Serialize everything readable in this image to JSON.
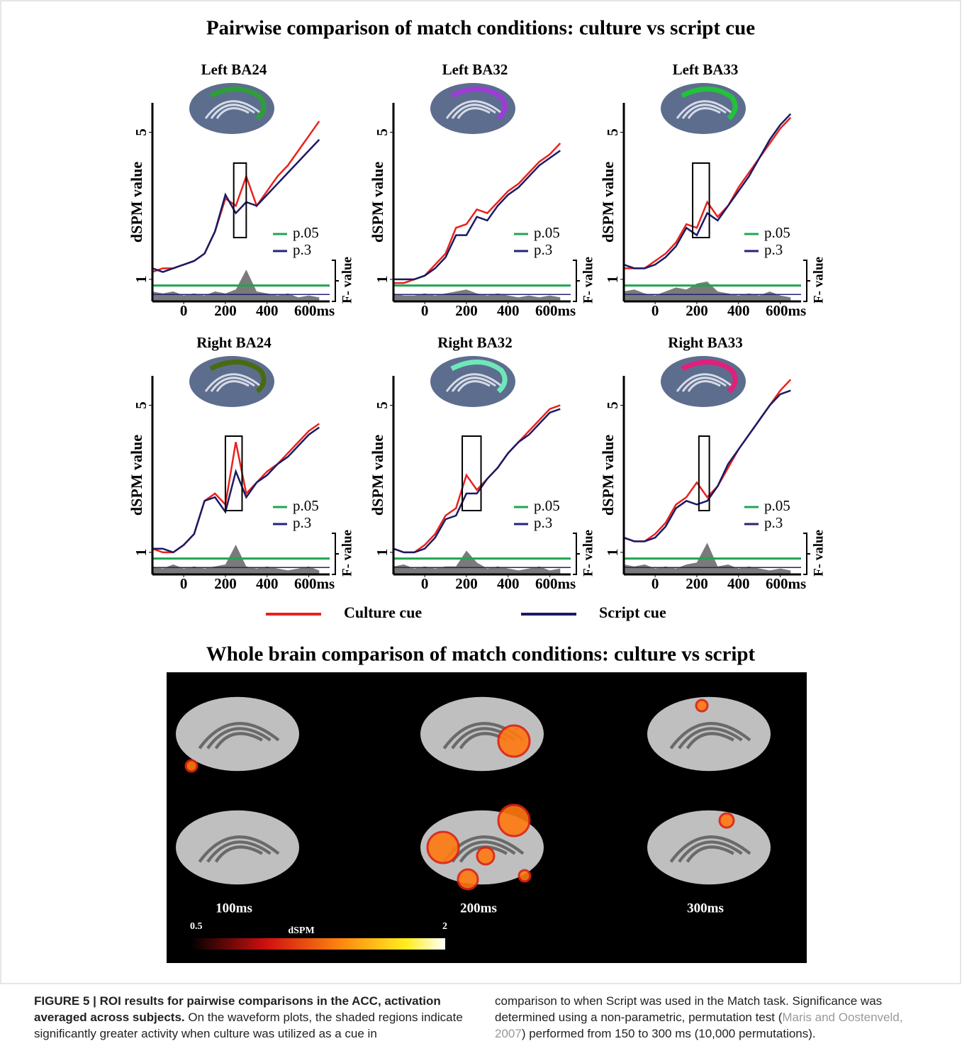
{
  "figure_title": "Pairwise comparison of match conditions:  culture vs script cue",
  "chart_data": [
    {
      "type": "line",
      "title": "Left BA24",
      "y_label": "dSPM value",
      "y2_label": "F- value",
      "roi_color": "#2e9e3a",
      "xlim": [
        -150,
        700
      ],
      "ylim": [
        0.4,
        5.8
      ],
      "y2lim": [
        0,
        10
      ],
      "xticks": [
        0,
        200,
        400,
        {
          "value": 600,
          "label": "600ms"
        }
      ],
      "yticks": [
        1,
        5
      ],
      "x": [
        -150,
        -100,
        -50,
        0,
        50,
        100,
        150,
        200,
        250,
        300,
        350,
        400,
        450,
        500,
        550,
        600,
        650
      ],
      "series": [
        {
          "color": "#e8221e",
          "values": [
            1.2,
            1.3,
            1.3,
            1.4,
            1.5,
            1.7,
            2.3,
            3.2,
            3.0,
            3.8,
            3.0,
            3.4,
            3.8,
            4.1,
            4.5,
            4.9,
            5.3
          ]
        },
        {
          "color": "#1a1a66",
          "values": [
            1.3,
            1.2,
            1.3,
            1.4,
            1.5,
            1.7,
            2.3,
            3.3,
            2.8,
            3.1,
            3.0,
            3.3,
            3.6,
            3.9,
            4.2,
            4.5,
            4.8
          ]
        },
        {
          "color": "#7a7a7a",
          "axis": "y2",
          "values": [
            0.5,
            0.4,
            0.5,
            0.3,
            0.4,
            0.3,
            0.5,
            0.4,
            0.6,
            1.6,
            0.5,
            0.4,
            0.3,
            0.4,
            0.2,
            0.3,
            0.2
          ]
        }
      ],
      "thresholds": [
        {
          "label": "p.05",
          "value": 0.8,
          "color": "#1fa552"
        },
        {
          "label": "p.3",
          "value": 0.35,
          "color": "#23237a"
        }
      ],
      "highlight_x": [
        240,
        300
      ]
    },
    {
      "type": "line",
      "title": "Left BA32",
      "y_label": "dSPM value",
      "y2_label": "F- value",
      "roi_color": "#9b3dd6",
      "xlim": [
        -150,
        700
      ],
      "ylim": [
        0.4,
        5.8
      ],
      "y2lim": [
        0,
        10
      ],
      "xticks": [
        0,
        200,
        400,
        {
          "value": 600,
          "label": "600ms"
        }
      ],
      "yticks": [
        1,
        5
      ],
      "x": [
        -150,
        -100,
        -50,
        0,
        50,
        100,
        150,
        200,
        250,
        300,
        350,
        400,
        450,
        500,
        550,
        600,
        650
      ],
      "series": [
        {
          "color": "#e8221e",
          "values": [
            0.9,
            0.9,
            1.0,
            1.1,
            1.4,
            1.7,
            2.4,
            2.5,
            2.9,
            2.8,
            3.1,
            3.4,
            3.6,
            3.9,
            4.2,
            4.4,
            4.7
          ]
        },
        {
          "color": "#1a1a66",
          "values": [
            1.0,
            1.0,
            1.0,
            1.1,
            1.3,
            1.6,
            2.2,
            2.2,
            2.7,
            2.6,
            3.0,
            3.3,
            3.5,
            3.8,
            4.1,
            4.3,
            4.5
          ]
        },
        {
          "color": "#7a7a7a",
          "axis": "y2",
          "values": [
            0.4,
            0.3,
            0.3,
            0.4,
            0.3,
            0.4,
            0.5,
            0.6,
            0.4,
            0.3,
            0.4,
            0.3,
            0.2,
            0.3,
            0.2,
            0.3,
            0.2
          ]
        }
      ],
      "thresholds": [
        {
          "label": "p.05",
          "value": 0.8,
          "color": "#1fa552"
        },
        {
          "label": "p.3",
          "value": 0.35,
          "color": "#23237a"
        }
      ]
    },
    {
      "type": "line",
      "title": "Left BA33",
      "y_label": "dSPM value",
      "y2_label": "F- value",
      "roi_color": "#22c23a",
      "xlim": [
        -150,
        700
      ],
      "ylim": [
        0.4,
        5.8
      ],
      "y2lim": [
        0,
        10
      ],
      "xticks": [
        0,
        200,
        400,
        {
          "value": 600,
          "label": "600ms"
        }
      ],
      "yticks": [
        1,
        5
      ],
      "x": [
        -150,
        -100,
        -50,
        0,
        50,
        100,
        150,
        200,
        250,
        300,
        350,
        400,
        450,
        500,
        550,
        600,
        650
      ],
      "series": [
        {
          "color": "#e8221e",
          "values": [
            1.3,
            1.3,
            1.3,
            1.5,
            1.7,
            2.0,
            2.5,
            2.4,
            3.1,
            2.7,
            3.0,
            3.5,
            3.9,
            4.3,
            4.7,
            5.1,
            5.4
          ]
        },
        {
          "color": "#1a1a66",
          "values": [
            1.4,
            1.3,
            1.3,
            1.4,
            1.6,
            1.9,
            2.4,
            2.2,
            2.8,
            2.6,
            3.0,
            3.4,
            3.8,
            4.3,
            4.8,
            5.2,
            5.5
          ]
        },
        {
          "color": "#7a7a7a",
          "axis": "y2",
          "values": [
            0.5,
            0.6,
            0.4,
            0.3,
            0.5,
            0.7,
            0.6,
            0.9,
            1.0,
            0.5,
            0.4,
            0.3,
            0.4,
            0.3,
            0.5,
            0.3,
            0.2
          ]
        }
      ],
      "thresholds": [
        {
          "label": "p.05",
          "value": 0.8,
          "color": "#1fa552"
        },
        {
          "label": "p.3",
          "value": 0.35,
          "color": "#23237a"
        }
      ],
      "highlight_x": [
        180,
        260
      ]
    },
    {
      "type": "line",
      "title": "Right BA24",
      "y_label": "dSPM value",
      "y2_label": "F- value",
      "roi_color": "#4a6a10",
      "xlim": [
        -150,
        700
      ],
      "ylim": [
        0.4,
        5.8
      ],
      "y2lim": [
        0,
        10
      ],
      "xticks": [
        0,
        200,
        400,
        {
          "value": 600,
          "label": "600ms"
        }
      ],
      "yticks": [
        1,
        5
      ],
      "x": [
        -150,
        -100,
        -50,
        0,
        50,
        100,
        150,
        200,
        250,
        300,
        350,
        400,
        450,
        500,
        550,
        600,
        650
      ],
      "series": [
        {
          "color": "#e8221e",
          "values": [
            1.1,
            1.0,
            1.0,
            1.2,
            1.5,
            2.4,
            2.6,
            2.3,
            4.0,
            2.6,
            2.9,
            3.2,
            3.4,
            3.7,
            4.0,
            4.3,
            4.5
          ]
        },
        {
          "color": "#1a1a66",
          "values": [
            1.1,
            1.1,
            1.0,
            1.2,
            1.5,
            2.4,
            2.5,
            2.1,
            3.2,
            2.5,
            2.9,
            3.1,
            3.4,
            3.6,
            3.9,
            4.2,
            4.4
          ]
        },
        {
          "color": "#7a7a7a",
          "axis": "y2",
          "values": [
            0.4,
            0.3,
            0.5,
            0.3,
            0.4,
            0.3,
            0.4,
            0.5,
            1.5,
            0.4,
            0.3,
            0.4,
            0.3,
            0.2,
            0.3,
            0.4,
            0.2
          ]
        }
      ],
      "thresholds": [
        {
          "label": "p.05",
          "value": 0.8,
          "color": "#1fa552"
        },
        {
          "label": "p.3",
          "value": 0.35,
          "color": "#23237a"
        }
      ],
      "highlight_x": [
        200,
        280
      ]
    },
    {
      "type": "line",
      "title": "Right BA32",
      "y_label": "dSPM value",
      "y2_label": "F- value",
      "roi_color": "#6ee8b8",
      "xlim": [
        -150,
        700
      ],
      "ylim": [
        0.4,
        5.8
      ],
      "y2lim": [
        0,
        10
      ],
      "xticks": [
        0,
        200,
        400,
        {
          "value": 600,
          "label": "600ms"
        }
      ],
      "yticks": [
        1,
        5
      ],
      "x": [
        -150,
        -100,
        -50,
        0,
        50,
        100,
        150,
        200,
        250,
        300,
        350,
        400,
        450,
        500,
        550,
        600,
        650
      ],
      "series": [
        {
          "color": "#e8221e",
          "values": [
            1.1,
            1.0,
            1.0,
            1.2,
            1.5,
            2.0,
            2.2,
            3.1,
            2.7,
            3.0,
            3.3,
            3.7,
            4.0,
            4.3,
            4.6,
            4.9,
            5.0
          ]
        },
        {
          "color": "#1a1a66",
          "values": [
            1.1,
            1.0,
            1.0,
            1.1,
            1.4,
            1.9,
            2.0,
            2.6,
            2.6,
            3.0,
            3.3,
            3.7,
            4.0,
            4.2,
            4.5,
            4.8,
            4.9
          ]
        },
        {
          "color": "#7a7a7a",
          "axis": "y2",
          "values": [
            0.4,
            0.5,
            0.3,
            0.4,
            0.3,
            0.4,
            0.4,
            1.2,
            0.6,
            0.3,
            0.4,
            0.3,
            0.2,
            0.3,
            0.4,
            0.2,
            0.3
          ]
        }
      ],
      "thresholds": [
        {
          "label": "p.05",
          "value": 0.8,
          "color": "#1fa552"
        },
        {
          "label": "p.3",
          "value": 0.35,
          "color": "#23237a"
        }
      ],
      "highlight_x": [
        180,
        270
      ]
    },
    {
      "type": "line",
      "title": "Right BA33",
      "y_label": "dSPM value",
      "y2_label": "F- value",
      "roi_color": "#e0207a",
      "xlim": [
        -150,
        700
      ],
      "ylim": [
        0.4,
        5.8
      ],
      "y2lim": [
        0,
        10
      ],
      "xticks": [
        0,
        200,
        400,
        {
          "value": 600,
          "label": "600ms"
        }
      ],
      "yticks": [
        1,
        5
      ],
      "x": [
        -150,
        -100,
        -50,
        0,
        50,
        100,
        150,
        200,
        250,
        300,
        350,
        400,
        450,
        500,
        550,
        600,
        650
      ],
      "series": [
        {
          "color": "#e8221e",
          "values": [
            1.4,
            1.3,
            1.3,
            1.5,
            1.8,
            2.3,
            2.5,
            2.9,
            2.5,
            2.8,
            3.3,
            3.8,
            4.2,
            4.6,
            5.0,
            5.4,
            5.7
          ]
        },
        {
          "color": "#1a1a66",
          "values": [
            1.4,
            1.3,
            1.3,
            1.4,
            1.7,
            2.2,
            2.4,
            2.3,
            2.4,
            2.8,
            3.4,
            3.8,
            4.2,
            4.6,
            5.0,
            5.3,
            5.4
          ]
        },
        {
          "color": "#7a7a7a",
          "axis": "y2",
          "values": [
            0.5,
            0.4,
            0.5,
            0.3,
            0.4,
            0.3,
            0.5,
            0.6,
            1.6,
            0.4,
            0.5,
            0.3,
            0.4,
            0.3,
            0.2,
            0.3,
            0.2
          ]
        }
      ],
      "thresholds": [
        {
          "label": "p.05",
          "value": 0.8,
          "color": "#1fa552"
        },
        {
          "label": "p.3",
          "value": 0.35,
          "color": "#23237a"
        }
      ],
      "highlight_x": [
        210,
        260
      ]
    }
  ],
  "legend": [
    {
      "name": "Culture cue",
      "color": "#e8221e"
    },
    {
      "name": "Script cue",
      "color": "#1a1a66"
    }
  ],
  "section_title": "Whole brain comparison of match conditions:  culture vs script",
  "time_labels": [
    "100ms",
    "200ms",
    "300ms"
  ],
  "colorbar": {
    "label": "dSPM",
    "range": [
      0.5,
      2
    ]
  },
  "caption": {
    "heading": "FIGURE 5 | ROI results for pairwise comparisons in the ACC, activation averaged across subjects.",
    "text1": " On the waveform plots, the shaded regions indicate significantly greater activity when culture was utilized as a cue in",
    "text2": "comparison to when Script was used in the Match task. Significance was determined using a non-parametric, permutation test (",
    "citation": "Maris and Oostenveld, 2007",
    "text3": ") performed from 150 to 300 ms (10,000 permutations)."
  }
}
